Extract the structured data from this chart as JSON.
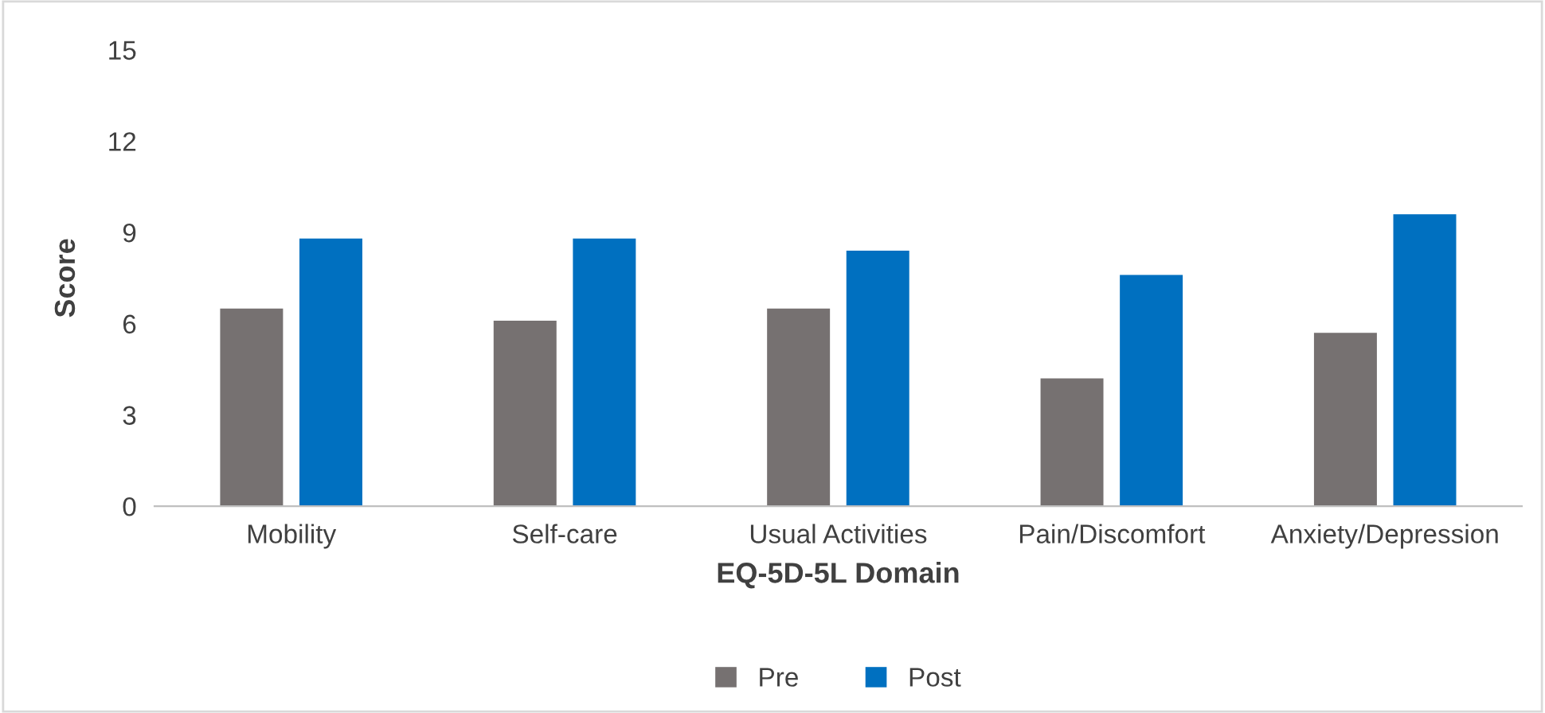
{
  "chart_data": {
    "type": "bar",
    "xlabel": "EQ-5D-5L Domain",
    "ylabel": "Score",
    "categories": [
      "Mobility",
      "Self-care",
      "Usual Activities",
      "Pain/Discomfort",
      "Anxiety/Depression"
    ],
    "series": [
      {
        "name": "Pre",
        "color": "#767171",
        "values": [
          6.5,
          6.1,
          6.5,
          4.2,
          5.7
        ]
      },
      {
        "name": "Post",
        "color": "#0070c0",
        "values": [
          8.8,
          8.8,
          8.4,
          7.6,
          9.6
        ]
      }
    ],
    "ylim": [
      0,
      15
    ],
    "yticks": [
      0,
      3,
      6,
      9,
      12,
      15
    ],
    "grid": false,
    "legend": "bottom"
  }
}
